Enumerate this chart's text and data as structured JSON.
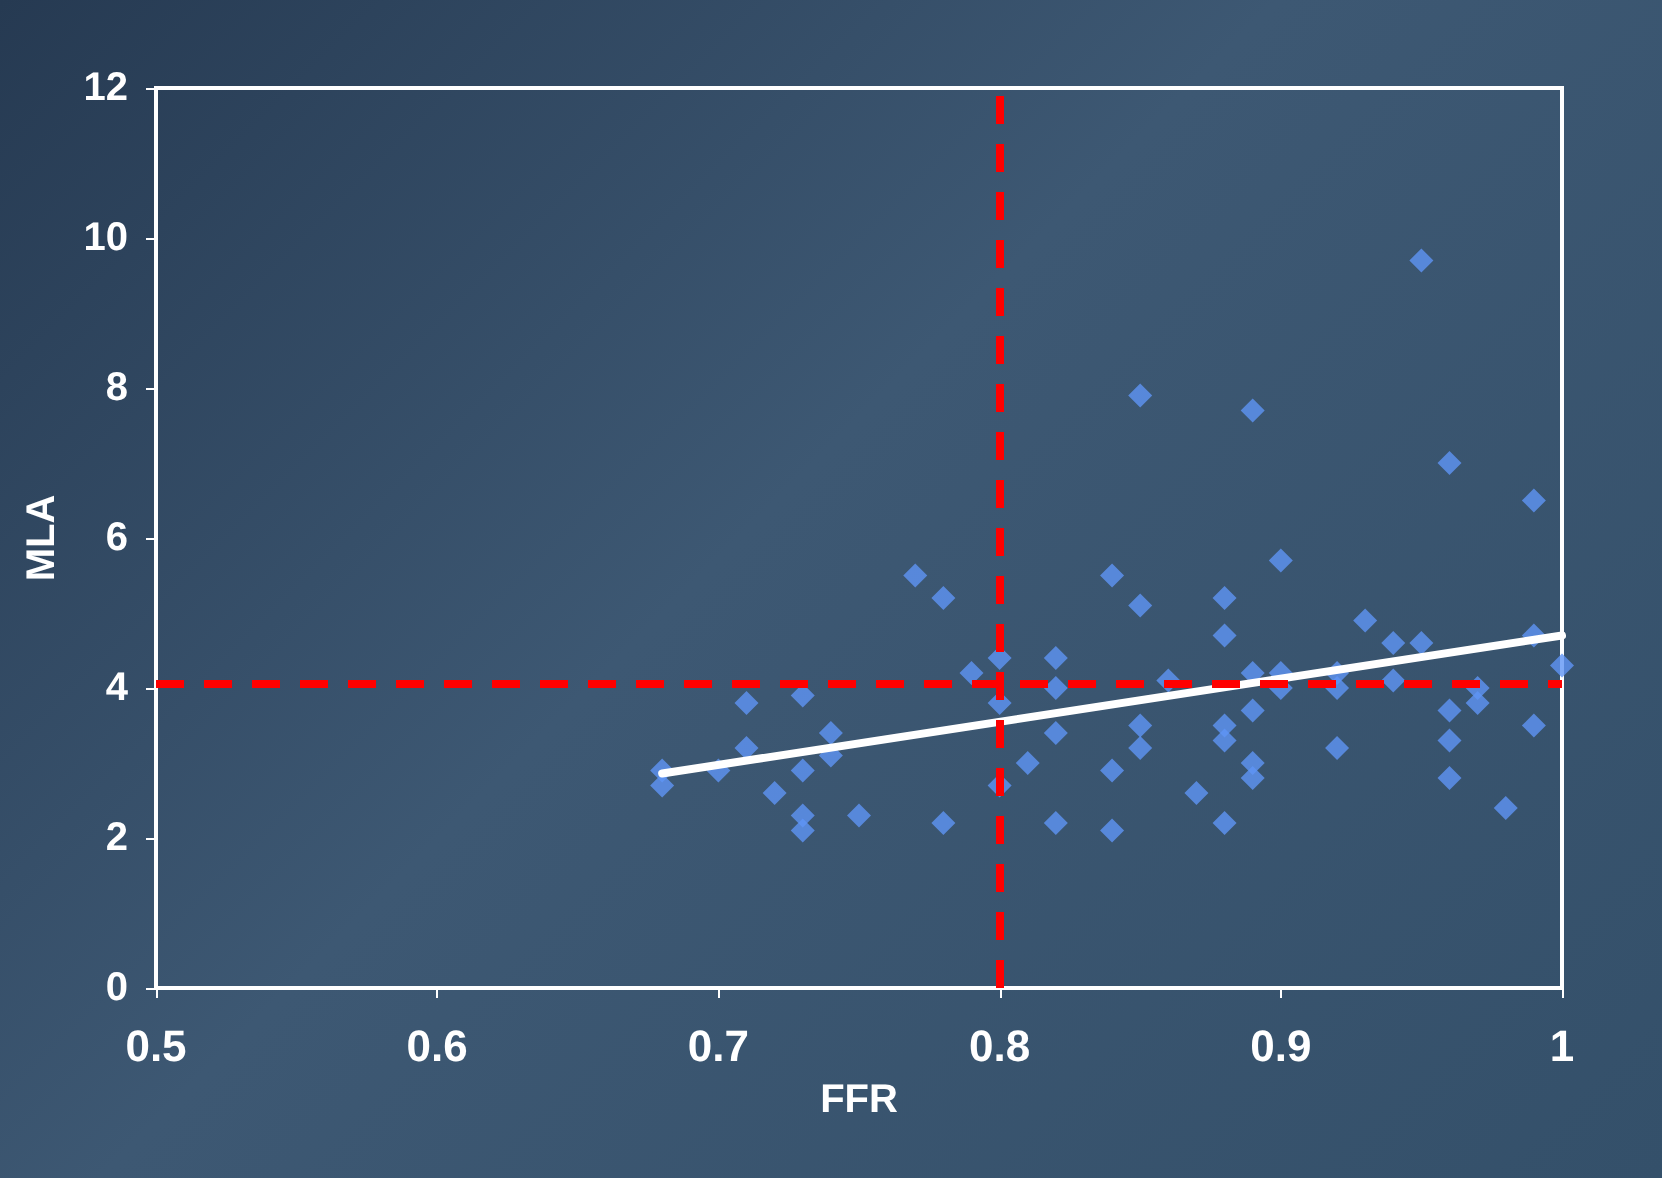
{
  "chart_data": {
    "type": "scatter",
    "xlabel": "FFR",
    "ylabel": "MLA",
    "xlim": [
      0.5,
      1
    ],
    "xticks": [
      0.5,
      0.6,
      0.7,
      0.8,
      0.9,
      1
    ],
    "ylim": [
      0,
      12
    ],
    "yticks": [
      0,
      2,
      4,
      6,
      8,
      10,
      12
    ],
    "marker": "diamond",
    "series": [
      {
        "color": "#5f95f5",
        "x": [
          0.68,
          0.68,
          0.7,
          0.71,
          0.71,
          0.72,
          0.73,
          0.73,
          0.73,
          0.73,
          0.74,
          0.74,
          0.75,
          0.77,
          0.78,
          0.78,
          0.79,
          0.8,
          0.8,
          0.8,
          0.81,
          0.82,
          0.82,
          0.82,
          0.82,
          0.84,
          0.84,
          0.84,
          0.85,
          0.85,
          0.85,
          0.85,
          0.86,
          0.87,
          0.88,
          0.88,
          0.88,
          0.88,
          0.88,
          0.89,
          0.89,
          0.89,
          0.89,
          0.89,
          0.9,
          0.9,
          0.9,
          0.92,
          0.92,
          0.92,
          0.93,
          0.94,
          0.94,
          0.95,
          0.95,
          0.96,
          0.96,
          0.96,
          0.96,
          0.97,
          0.97,
          0.98,
          0.99,
          0.99,
          0.99,
          1.0
        ],
        "values": [
          2.9,
          2.7,
          2.9,
          3.8,
          3.2,
          2.6,
          3.9,
          2.9,
          2.3,
          2.1,
          3.4,
          3.1,
          2.3,
          5.5,
          5.2,
          2.2,
          4.2,
          4.4,
          3.8,
          2.7,
          3.0,
          4.4,
          4.0,
          3.4,
          2.2,
          5.5,
          2.9,
          2.1,
          7.9,
          5.1,
          3.5,
          3.2,
          4.1,
          2.6,
          5.2,
          4.7,
          3.5,
          3.3,
          2.2,
          7.7,
          4.2,
          3.7,
          3.0,
          2.8,
          5.7,
          4.2,
          4.0,
          4.2,
          4.0,
          3.2,
          4.9,
          4.6,
          4.1,
          9.7,
          4.6,
          7.0,
          3.7,
          3.3,
          2.8,
          4.0,
          3.8,
          2.4,
          6.5,
          4.7,
          3.5,
          4.3
        ]
      },
      {
        "type": "line",
        "color": "#ffffff",
        "marker": "none",
        "x": [
          0.68,
          1.0
        ],
        "values": [
          2.86,
          4.7
        ]
      }
    ],
    "ref_lines": [
      {
        "axis": "x",
        "value": 0.8,
        "color": "#ff0000",
        "line_style": "dashed"
      },
      {
        "axis": "y",
        "value": 4.05,
        "color": "#ff0000",
        "line_style": "dashed"
      }
    ]
  }
}
